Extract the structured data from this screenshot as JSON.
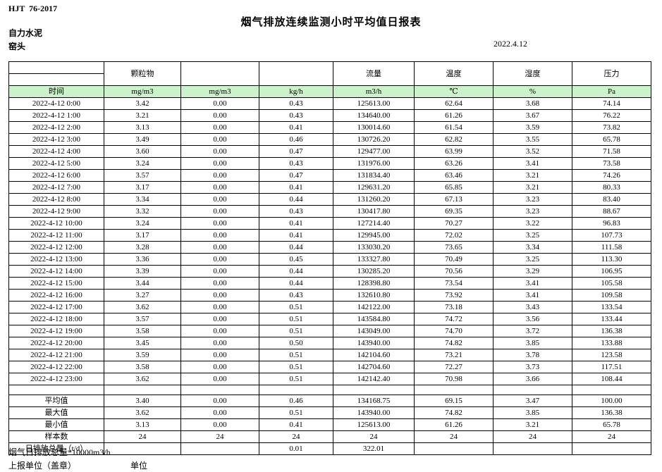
{
  "colors": {
    "header_green": "#ccf2cc"
  },
  "page": {
    "doc_code": "HJT  76-2017",
    "title": "烟气排放连续监测小时平均值日报表",
    "company": "自力水泥",
    "station": "窑头",
    "date": "2022.4.12"
  },
  "table": {
    "group_headers": [
      "",
      "颗粒物",
      "",
      "",
      "流量",
      "温度",
      "湿度",
      "压力"
    ],
    "unit_row": [
      "时间",
      "mg/m3",
      "mg/m3",
      "kg/h",
      "m3/h",
      "℃",
      "%",
      "Pa"
    ],
    "rows": [
      [
        "2022-4-12 0:00",
        "3.42",
        "0.00",
        "0.43",
        "125613.00",
        "62.64",
        "3.68",
        "74.14"
      ],
      [
        "2022-4-12 1:00",
        "3.21",
        "0.00",
        "0.43",
        "134640.00",
        "61.26",
        "3.67",
        "76.22"
      ],
      [
        "2022-4-12 2:00",
        "3.13",
        "0.00",
        "0.41",
        "130014.60",
        "61.54",
        "3.59",
        "73.82"
      ],
      [
        "2022-4-12 3:00",
        "3.49",
        "0.00",
        "0.46",
        "130726.20",
        "62.82",
        "3.55",
        "65.78"
      ],
      [
        "2022-4-12 4:00",
        "3.60",
        "0.00",
        "0.47",
        "129477.00",
        "63.99",
        "3.52",
        "71.58"
      ],
      [
        "2022-4-12 5:00",
        "3.24",
        "0.00",
        "0.43",
        "131976.00",
        "63.26",
        "3.41",
        "73.58"
      ],
      [
        "2022-4-12 6:00",
        "3.57",
        "0.00",
        "0.47",
        "131834.40",
        "63.46",
        "3.21",
        "74.26"
      ],
      [
        "2022-4-12 7:00",
        "3.17",
        "0.00",
        "0.41",
        "129631.20",
        "65.85",
        "3.21",
        "80.33"
      ],
      [
        "2022-4-12 8:00",
        "3.34",
        "0.00",
        "0.44",
        "131260.20",
        "67.13",
        "3.23",
        "83.40"
      ],
      [
        "2022-4-12 9:00",
        "3.32",
        "0.00",
        "0.43",
        "130417.80",
        "69.35",
        "3.23",
        "88.67"
      ],
      [
        "2022-4-12 10:00",
        "3.24",
        "0.00",
        "0.41",
        "127214.40",
        "70.27",
        "3.22",
        "96.83"
      ],
      [
        "2022-4-12 11:00",
        "3.17",
        "0.00",
        "0.41",
        "129945.00",
        "72.02",
        "3.25",
        "107.73"
      ],
      [
        "2022-4-12 12:00",
        "3.28",
        "0.00",
        "0.44",
        "133030.20",
        "73.65",
        "3.34",
        "111.58"
      ],
      [
        "2022-4-12 13:00",
        "3.36",
        "0.00",
        "0.45",
        "133327.80",
        "70.49",
        "3.25",
        "113.30"
      ],
      [
        "2022-4-12 14:00",
        "3.39",
        "0.00",
        "0.44",
        "130285.20",
        "70.56",
        "3.29",
        "106.95"
      ],
      [
        "2022-4-12 15:00",
        "3.44",
        "0.00",
        "0.44",
        "128398.80",
        "73.54",
        "3.41",
        "105.58"
      ],
      [
        "2022-4-12 16:00",
        "3.27",
        "0.00",
        "0.43",
        "132610.80",
        "73.92",
        "3.41",
        "109.58"
      ],
      [
        "2022-4-12 17:00",
        "3.62",
        "0.00",
        "0.51",
        "142122.00",
        "73.18",
        "3.43",
        "133.54"
      ],
      [
        "2022-4-12 18:00",
        "3.57",
        "0.00",
        "0.51",
        "143584.80",
        "74.72",
        "3.56",
        "133.44"
      ],
      [
        "2022-4-12 19:00",
        "3.58",
        "0.00",
        "0.51",
        "143049.00",
        "74.70",
        "3.72",
        "136.38"
      ],
      [
        "2022-4-12 20:00",
        "3.45",
        "0.00",
        "0.50",
        "143940.00",
        "74.82",
        "3.85",
        "133.88"
      ],
      [
        "2022-4-12 21:00",
        "3.59",
        "0.00",
        "0.51",
        "142104.60",
        "73.21",
        "3.78",
        "123.58"
      ],
      [
        "2022-4-12 22:00",
        "3.58",
        "0.00",
        "0.51",
        "142704.60",
        "72.27",
        "3.73",
        "117.51"
      ],
      [
        "2022-4-12 23:00",
        "3.62",
        "0.00",
        "0.51",
        "142142.40",
        "70.98",
        "3.66",
        "108.44"
      ]
    ],
    "summary": [
      [
        "平均值",
        "3.40",
        "0.00",
        "0.46",
        "134168.75",
        "69.15",
        "3.47",
        "100.00"
      ],
      [
        "最大值",
        "3.62",
        "0.00",
        "0.51",
        "143940.00",
        "74.82",
        "3.85",
        "136.38"
      ],
      [
        "最小值",
        "3.13",
        "0.00",
        "0.41",
        "125613.00",
        "61.26",
        "3.21",
        "65.78"
      ],
      [
        "样本数",
        "24",
        "24",
        "24",
        "24",
        "24",
        "24",
        "24"
      ],
      [
        "日排放总量（t/d）",
        "",
        "",
        "0.01",
        "322.01",
        "",
        "",
        ""
      ]
    ]
  },
  "footer": {
    "note": "烟气日排放总量*10000m3/h",
    "report_unit_label": "上报单位（盖章）",
    "unit_label": "单位"
  }
}
